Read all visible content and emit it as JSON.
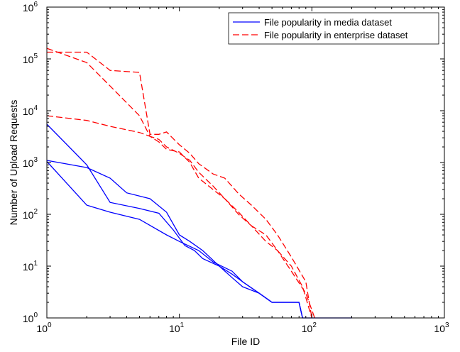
{
  "chart_data": {
    "type": "line",
    "title": "",
    "xlabel": "File ID",
    "ylabel": "Number of Upload Requests",
    "xscale": "log",
    "yscale": "log",
    "xlim": [
      1,
      1000
    ],
    "ylim": [
      1,
      1000000
    ],
    "grid": false,
    "legend_position": "top-right",
    "x_ticks": [
      {
        "value": 1,
        "base": "10",
        "exp": "0"
      },
      {
        "value": 10,
        "base": "10",
        "exp": "1"
      },
      {
        "value": 100,
        "base": "10",
        "exp": "2"
      },
      {
        "value": 1000,
        "base": "10",
        "exp": "3"
      }
    ],
    "y_ticks": [
      {
        "value": 1,
        "base": "10",
        "exp": "0"
      },
      {
        "value": 10,
        "base": "10",
        "exp": "1"
      },
      {
        "value": 100,
        "base": "10",
        "exp": "2"
      },
      {
        "value": 1000,
        "base": "10",
        "exp": "3"
      },
      {
        "value": 10000,
        "base": "10",
        "exp": "4"
      },
      {
        "value": 100000,
        "base": "10",
        "exp": "5"
      },
      {
        "value": 1000000,
        "base": "10",
        "exp": "6"
      }
    ],
    "legend": [
      {
        "label": "File popularity in media dataset",
        "color": "#0000ff",
        "style": "solid"
      },
      {
        "label": "File popularity in enterprise dataset",
        "color": "#ff0000",
        "style": "dashed"
      }
    ],
    "series": [
      {
        "group": "media",
        "color": "#0000ff",
        "style": "solid",
        "points": [
          [
            1,
            5500
          ],
          [
            2,
            900
          ],
          [
            3,
            170
          ],
          [
            5,
            130
          ],
          [
            7,
            105
          ],
          [
            9,
            50
          ],
          [
            11,
            25
          ],
          [
            13,
            20
          ],
          [
            15,
            14
          ],
          [
            20,
            10
          ],
          [
            25,
            6
          ],
          [
            30,
            4
          ],
          [
            40,
            3
          ],
          [
            50,
            2
          ],
          [
            60,
            2
          ],
          [
            80,
            2
          ],
          [
            85,
            1
          ],
          [
            200,
            1
          ]
        ]
      },
      {
        "group": "media",
        "color": "#0000ff",
        "style": "solid",
        "points": [
          [
            1,
            1100
          ],
          [
            2,
            800
          ],
          [
            3,
            500
          ],
          [
            4,
            260
          ],
          [
            6,
            200
          ],
          [
            8,
            110
          ],
          [
            10,
            40
          ],
          [
            12,
            30
          ],
          [
            15,
            20
          ],
          [
            20,
            10
          ],
          [
            25,
            7
          ],
          [
            30,
            5
          ],
          [
            40,
            3
          ],
          [
            50,
            2
          ],
          [
            60,
            2
          ],
          [
            80,
            2
          ],
          [
            85,
            1
          ]
        ]
      },
      {
        "group": "media",
        "color": "#0000ff",
        "style": "solid",
        "points": [
          [
            1,
            1050
          ],
          [
            2,
            150
          ],
          [
            3,
            110
          ],
          [
            5,
            80
          ],
          [
            8,
            40
          ],
          [
            10,
            30
          ],
          [
            14,
            20
          ],
          [
            18,
            12
          ],
          [
            25,
            8
          ],
          [
            30,
            5
          ],
          [
            40,
            3
          ],
          [
            50,
            2
          ],
          [
            60,
            2
          ],
          [
            80,
            2
          ],
          [
            85,
            1
          ]
        ]
      },
      {
        "group": "enterprise",
        "color": "#ff0000",
        "style": "dashed",
        "points": [
          [
            1,
            160000
          ],
          [
            2,
            85000
          ],
          [
            3,
            30000
          ],
          [
            5,
            8000
          ],
          [
            6,
            3200
          ],
          [
            7,
            2800
          ],
          [
            8,
            2000
          ],
          [
            10,
            1500
          ],
          [
            12,
            1100
          ],
          [
            14,
            650
          ],
          [
            18,
            350
          ],
          [
            22,
            200
          ],
          [
            28,
            110
          ],
          [
            35,
            60
          ],
          [
            45,
            40
          ],
          [
            55,
            20
          ],
          [
            70,
            10
          ],
          [
            85,
            4
          ],
          [
            100,
            1
          ]
        ]
      },
      {
        "group": "enterprise",
        "color": "#ff0000",
        "style": "dashed",
        "points": [
          [
            1,
            135000
          ],
          [
            2,
            135000
          ],
          [
            3,
            60000
          ],
          [
            5,
            55000
          ],
          [
            6,
            3500
          ],
          [
            7,
            3500
          ],
          [
            8,
            3900
          ],
          [
            10,
            2200
          ],
          [
            12,
            1500
          ],
          [
            14,
            950
          ],
          [
            18,
            600
          ],
          [
            22,
            500
          ],
          [
            28,
            250
          ],
          [
            35,
            150
          ],
          [
            45,
            80
          ],
          [
            55,
            40
          ],
          [
            70,
            15
          ],
          [
            90,
            5
          ],
          [
            100,
            1
          ]
        ]
      },
      {
        "group": "enterprise",
        "color": "#ff0000",
        "style": "dashed",
        "points": [
          [
            1,
            8000
          ],
          [
            2,
            6500
          ],
          [
            3,
            5000
          ],
          [
            5,
            3800
          ],
          [
            6,
            3200
          ],
          [
            7,
            2500
          ],
          [
            8,
            1800
          ],
          [
            10,
            1600
          ],
          [
            12,
            1000
          ],
          [
            14,
            500
          ],
          [
            18,
            300
          ],
          [
            22,
            200
          ],
          [
            28,
            100
          ],
          [
            35,
            60
          ],
          [
            45,
            30
          ],
          [
            55,
            20
          ],
          [
            70,
            8
          ],
          [
            90,
            3
          ],
          [
            105,
            1
          ]
        ]
      }
    ]
  }
}
